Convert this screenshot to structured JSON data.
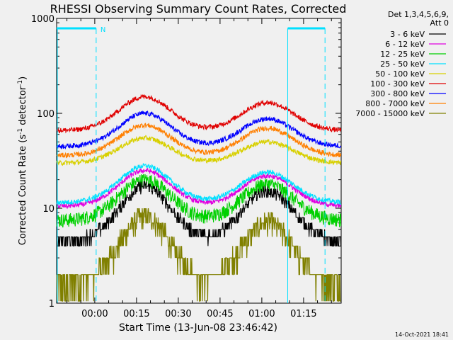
{
  "chart_data": {
    "type": "line",
    "title": "RHESSI Observing Summary Count Rates, Corrected",
    "xlabel": "Start Time (13-Jun-08 23:46:42)",
    "ylabel_html": "Corrected Count Rate (s⁻¹ detector⁻¹)",
    "ylabel_parts": [
      "Corrected Count Rate (s",
      "-1",
      " detector",
      "-1",
      ")"
    ],
    "y_scale": "log",
    "ylim": [
      1,
      1000
    ],
    "y_ticks": [
      {
        "value": 1,
        "label": "1"
      },
      {
        "value": 10,
        "label": "10"
      },
      {
        "value": 100,
        "label": "100"
      },
      {
        "value": 1000,
        "label": "1000"
      }
    ],
    "xlim_minutes": [
      -13.7,
      88.5
    ],
    "x_ticks": [
      {
        "minute": 0,
        "label": "00:00"
      },
      {
        "minute": 15,
        "label": "00:15"
      },
      {
        "minute": 30,
        "label": "00:30"
      },
      {
        "minute": 45,
        "label": "00:45"
      },
      {
        "minute": 60,
        "label": "01:00"
      },
      {
        "minute": 75,
        "label": "01:15"
      }
    ],
    "legend": {
      "header_lines": [
        "Det 1,3,4,5,6,9,",
        "Att 0"
      ],
      "placement": "right, outside"
    },
    "series": [
      {
        "name": "3 - 6 keV",
        "color": "#000000",
        "base": 4.5,
        "peaks": [
          17,
          15
        ]
      },
      {
        "name": "6 - 12 keV",
        "color": "#e000e0",
        "base": 10.5,
        "peaks": [
          25,
          22
        ]
      },
      {
        "name": "12 - 25 keV",
        "color": "#00d000",
        "base": 7.5,
        "peaks": [
          20,
          18
        ]
      },
      {
        "name": "25 - 50 keV",
        "color": "#00e0ff",
        "base": 11.5,
        "peaks": [
          28,
          24
        ]
      },
      {
        "name": "50 - 100 keV",
        "color": "#d8d000",
        "base": 30,
        "peaks": [
          55,
          50
        ]
      },
      {
        "name": "100 - 300 keV",
        "color": "#e00000",
        "base": 66,
        "peaks": [
          150,
          130
        ]
      },
      {
        "name": "300 - 800 keV",
        "color": "#0000ff",
        "base": 45,
        "peaks": [
          100,
          88
        ]
      },
      {
        "name": "800 - 7000 keV",
        "color": "#ff7f00",
        "base": 36,
        "peaks": [
          75,
          70
        ]
      },
      {
        "name": "7000 - 15000 keV",
        "color": "#808000",
        "base": 1.5,
        "peaks": [
          8,
          7
        ]
      }
    ],
    "peak_minutes": [
      18,
      62
    ],
    "annotations": {
      "night_flag_label": "N",
      "night_flag_color": "#00e0ff",
      "boundaries_minutes": [
        0.5,
        69.3,
        82.7
      ]
    },
    "timestamp": "14-Oct-2021 18:41"
  }
}
